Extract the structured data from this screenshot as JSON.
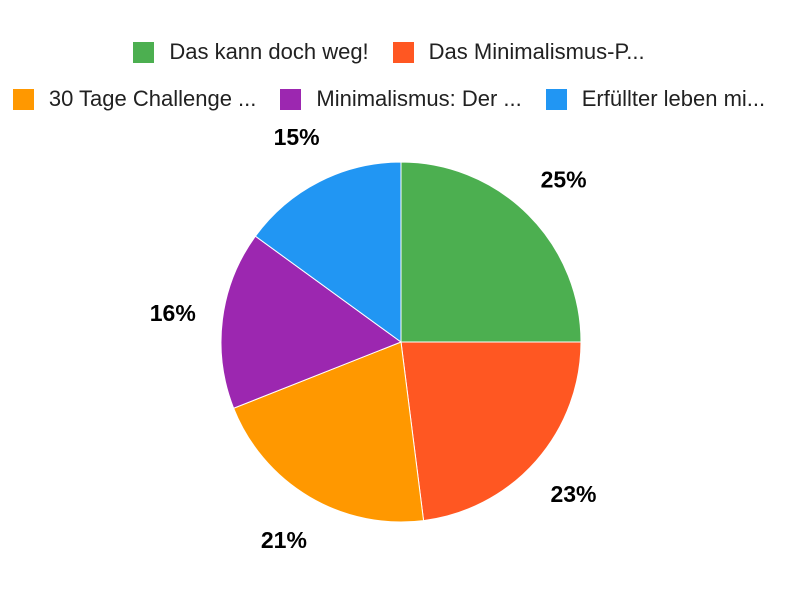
{
  "chart_data": {
    "type": "pie",
    "title": "",
    "legend_position": "top",
    "direction": "clockwise",
    "start_angle_deg": 0,
    "background": "#FFFFFF",
    "label_color": "#000000",
    "legend_text_color": "#212121",
    "labels": [
      "Das kann doch weg!",
      "Das Minimalismus-P...",
      "30 Tage Challenge ...",
      "Minimalismus: Der ...",
      "Erfüllter leben mi..."
    ],
    "values": [
      25,
      23,
      21,
      16,
      15
    ],
    "percent_labels": [
      "25%",
      "23%",
      "21%",
      "16%",
      "15%"
    ],
    "colors": [
      "#4CAF50",
      "#FF5722",
      "#FF9800",
      "#9C27B0",
      "#2196F3"
    ],
    "legend_rows": [
      [
        0,
        1
      ],
      [
        2,
        3,
        4
      ]
    ]
  }
}
